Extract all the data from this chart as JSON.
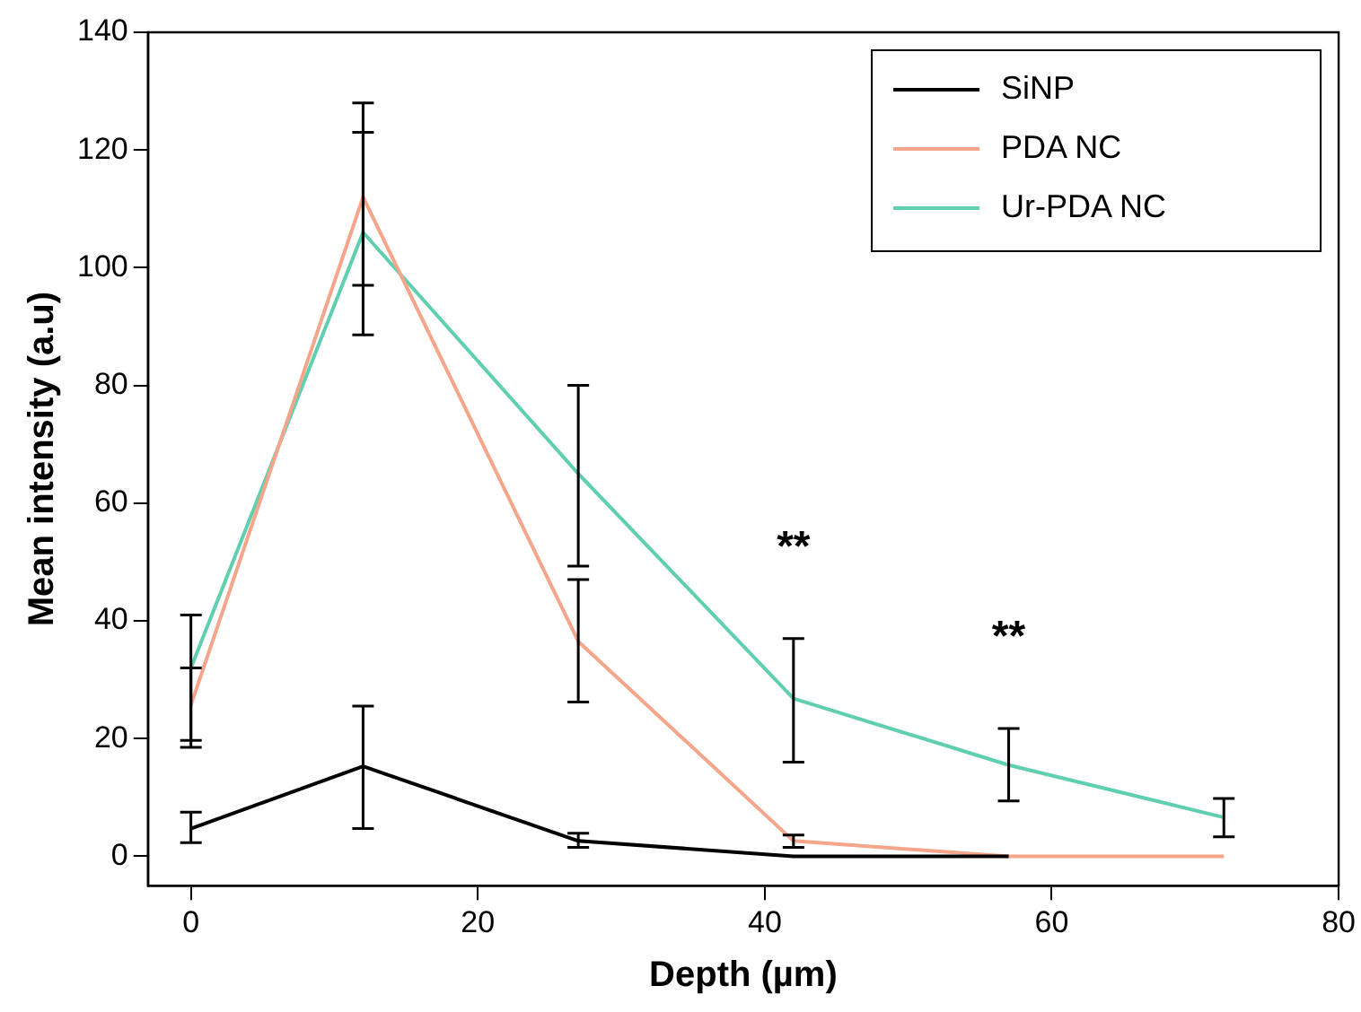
{
  "chart_data": {
    "type": "line",
    "xlabel": "Depth (µm)",
    "ylabel": "Mean intensity (a.u)",
    "xlim": [
      -3,
      80
    ],
    "xticks": [
      0,
      20,
      40,
      60,
      80
    ],
    "ylim": [
      -5,
      140
    ],
    "yticks": [
      0,
      20,
      40,
      60,
      80,
      100,
      120,
      140
    ],
    "grid": false,
    "legend": "top right",
    "marker": "none",
    "line_style": "solid",
    "series": [
      {
        "name": "SiNP",
        "color": "#000000",
        "x": [
          0,
          12,
          27,
          42,
          57
        ],
        "values": [
          4.7,
          15.3,
          2.6,
          0,
          0
        ],
        "errors": [
          [
            2.3,
            7.5
          ],
          [
            4.7,
            25.5
          ],
          [
            1.5,
            3.9
          ],
          null,
          null
        ]
      },
      {
        "name": "PDA NC",
        "color": "#f4a58a",
        "x": [
          0,
          12,
          27,
          42,
          57,
          72
        ],
        "values": [
          25.7,
          112,
          36.5,
          2.6,
          0,
          0
        ],
        "errors": [
          [
            19.7,
            32
          ],
          [
            97,
            128
          ],
          [
            26.2,
            47
          ],
          [
            1.5,
            3.6
          ],
          null,
          null
        ]
      },
      {
        "name": "Ur-PDA NC",
        "color": "#5fcfb0",
        "x": [
          0,
          12,
          27,
          42,
          57,
          72
        ],
        "values": [
          32,
          106,
          65,
          26.8,
          15.5,
          6.6
        ],
        "errors": [
          [
            18.5,
            41
          ],
          [
            88.6,
            123
          ],
          [
            49.3,
            80
          ],
          [
            16,
            37
          ],
          [
            9.4,
            21.7
          ],
          [
            3.3,
            9.8
          ]
        ]
      }
    ],
    "annotations": [
      "**",
      "**"
    ]
  }
}
